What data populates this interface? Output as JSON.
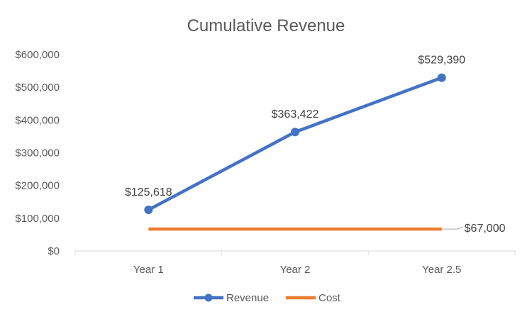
{
  "chart_data": {
    "type": "line",
    "title": "Cumulative Revenue",
    "categories": [
      "Year 1",
      "Year 2",
      "Year 2.5"
    ],
    "y_ticks": [
      "$0",
      "$100,000",
      "$200,000",
      "$300,000",
      "$400,000",
      "$500,000",
      "$600,000"
    ],
    "ylim": [
      0,
      600000
    ],
    "grid": false,
    "legend_position": "bottom",
    "series": [
      {
        "name": "Revenue",
        "values": [
          125618,
          363422,
          529390
        ],
        "labels": [
          "$125,618",
          "$363,422",
          "$529,390"
        ],
        "color": "#4472C4",
        "markers": true
      },
      {
        "name": "Cost",
        "values": [
          67000,
          67000,
          67000
        ],
        "end_label": "$67,000",
        "color": "#ED7D31",
        "markers": false
      }
    ]
  }
}
